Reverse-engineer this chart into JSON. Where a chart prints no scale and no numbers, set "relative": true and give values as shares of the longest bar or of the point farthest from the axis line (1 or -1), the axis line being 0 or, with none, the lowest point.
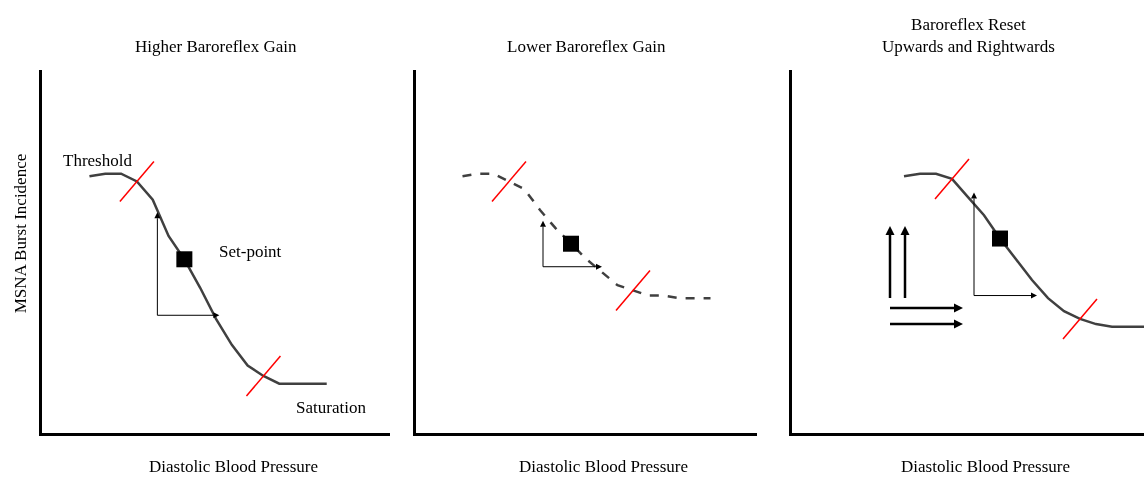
{
  "chart_data": [
    {
      "type": "line",
      "title": "Higher Baroreflex Gain",
      "xlabel": "Diastolic Blood Pressure",
      "ylabel": "MSNA Burst Incidence",
      "relative": true,
      "grid": false,
      "categories": [
        null,
        null,
        null,
        null,
        null,
        null,
        null,
        null,
        null,
        null,
        null,
        null,
        null,
        null,
        null,
        null
      ],
      "series": [
        {
          "color": "#404040",
          "line_style": "solid",
          "marker": "none",
          "values": [
            0.99,
            1,
            1,
            0.97,
            0.9,
            0.76,
            0.67,
            0.56,
            0.44,
            0.34,
            0.26,
            0.22,
            0.19,
            0.19,
            0.19,
            0.19
          ]
        }
      ],
      "annotations": [
        "Threshold",
        "Set-point",
        "Saturation"
      ]
    },
    {
      "type": "line",
      "title": "Lower Baroreflex Gain",
      "xlabel": "Diastolic Blood Pressure",
      "relative": true,
      "grid": false,
      "categories": [
        null,
        null,
        null,
        null,
        null,
        null,
        null,
        null,
        null,
        null,
        null,
        null,
        null,
        null,
        null,
        null,
        null
      ],
      "series": [
        {
          "color": "#404040",
          "line_style": "dashed",
          "marker": "none",
          "values": [
            0.99,
            1,
            1,
            0.97,
            0.94,
            0.86,
            0.79,
            0.73,
            0.67,
            0.62,
            0.57,
            0.55,
            0.53,
            0.53,
            0.52,
            0.52,
            0.52
          ]
        }
      ]
    },
    {
      "type": "line",
      "title": "Baroreflex Reset\nUpwards and Rightwards",
      "xlabel": "Diastolic Blood Pressure",
      "relative": true,
      "grid": false,
      "categories": [
        null,
        null,
        null,
        null,
        null,
        null,
        null,
        null,
        null,
        null,
        null,
        null,
        null,
        null,
        null,
        null
      ],
      "series": [
        {
          "color": "#404040",
          "line_style": "solid",
          "marker": "none",
          "values": [
            0.99,
            1,
            1,
            0.98,
            0.91,
            0.84,
            0.75,
            0.67,
            0.59,
            0.52,
            0.47,
            0.44,
            0.42,
            0.41,
            0.41,
            0.41
          ]
        }
      ]
    }
  ]
}
